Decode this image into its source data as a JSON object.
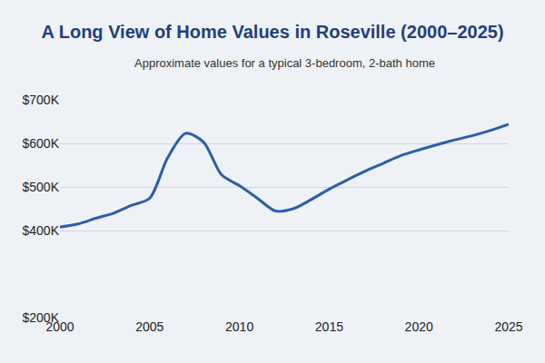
{
  "chart_data": {
    "type": "line",
    "title": "A Long View of Home Values in Roseville (2000–2025)",
    "subtitle": "Approximate values for a typical 3-bedroom, 2-bath home",
    "x": [
      2000,
      2001,
      2002,
      2003,
      2004,
      2005,
      2006,
      2007,
      2008,
      2009,
      2010,
      2011,
      2012,
      2013,
      2014,
      2015,
      2016,
      2017,
      2018,
      2019,
      2020,
      2021,
      2022,
      2023,
      2024,
      2025
    ],
    "values": [
      408,
      415,
      428,
      440,
      458,
      474,
      567,
      623,
      603,
      528,
      503,
      474,
      445,
      450,
      471,
      495,
      516,
      536,
      554,
      572,
      585,
      597,
      608,
      618,
      630,
      644
    ],
    "color": "#2a5ea8",
    "xlim": [
      2000,
      2025
    ],
    "xticks": [
      2000,
      2005,
      2010,
      2015,
      2020,
      2025
    ],
    "ylim": [
      200,
      700
    ],
    "yticks": [
      {
        "value": 200,
        "label": "$200K"
      },
      {
        "value": 400,
        "label": "$400K"
      },
      {
        "value": 500,
        "label": "$500K"
      },
      {
        "value": 600,
        "label": "$600K"
      },
      {
        "value": 700,
        "label": "$700K"
      }
    ],
    "grid": true
  }
}
